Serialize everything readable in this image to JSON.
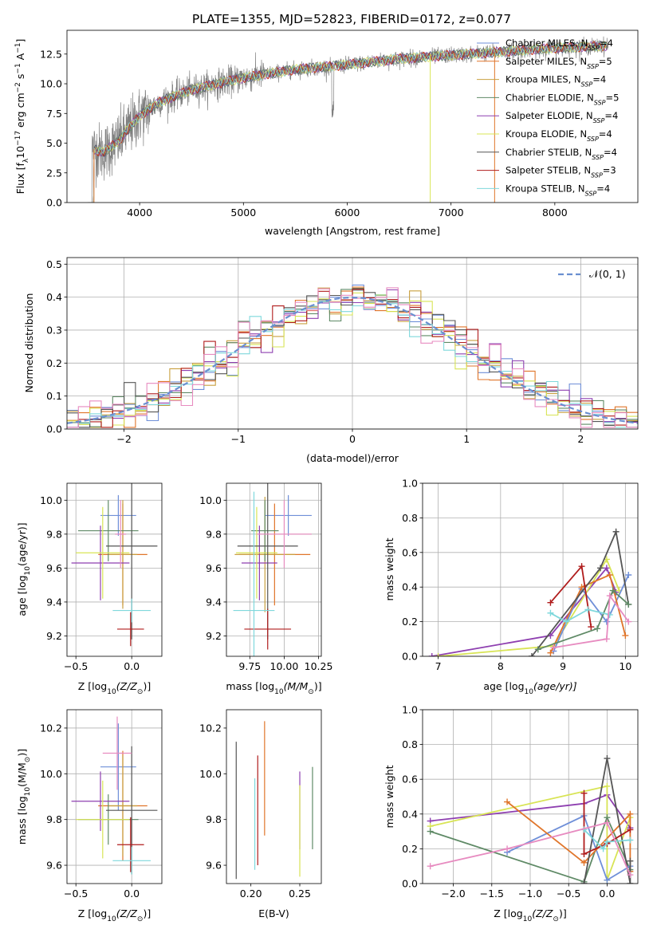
{
  "colors": {
    "Chabrier MILES": "#6f8fd8",
    "Salpeter MILES": "#e0752a",
    "Kroupa MILES": "#c9a040",
    "Chabrier ELODIE": "#5f8a66",
    "Salpeter ELODIE": "#8e3fb0",
    "Kroupa ELODIE": "#d8e455",
    "Chabrier STELIB": "#555555",
    "Salpeter STELIB": "#b01c1c",
    "Kroupa STELIB": "#7fd8dc",
    "pink": "#e78bc0",
    "data": "#808080",
    "normal": "#6a8fd0"
  },
  "chart_data": [
    {
      "id": "spectrum",
      "type": "line",
      "title": "PLATE=1355, MJD=52823, FIBERID=0172, z=0.077",
      "xlabel": "wavelength [Angstrom, rest frame]",
      "ylabel_parts": [
        "Flux [f",
        "λ",
        "10",
        "−17",
        " erg cm",
        "−2",
        " s",
        "−1",
        " A",
        "−1",
        "]"
      ],
      "xlim": [
        3300,
        8800
      ],
      "ylim": [
        0,
        14.5
      ],
      "xticks": [
        4000,
        5000,
        6000,
        7000,
        8000
      ],
      "yticks": [
        "0.0",
        "2.5",
        "5.0",
        "7.5",
        "10.0",
        "12.5"
      ],
      "grid": false,
      "legend_placement": "right",
      "legend": [
        {
          "name": "Chabrier MILES",
          "sub": "SSP",
          "n": "4"
        },
        {
          "name": "Salpeter MILES",
          "sub": "SSP",
          "n": "5"
        },
        {
          "name": "Kroupa MILES",
          "sub": "SSP",
          "n": "4"
        },
        {
          "name": "Chabrier ELODIE",
          "sub": "SSP",
          "n": "5"
        },
        {
          "name": "Salpeter ELODIE",
          "sub": "SSP",
          "n": "4"
        },
        {
          "name": "Kroupa ELODIE",
          "sub": "SSP",
          "n": "4"
        },
        {
          "name": "Chabrier STELIB",
          "sub": "SSP",
          "n": "4"
        },
        {
          "name": "Salpeter STELIB",
          "sub": "SSP",
          "n": "3"
        },
        {
          "name": "Kroupa STELIB",
          "sub": "SSP",
          "n": "4"
        }
      ],
      "legend_prefix": "N",
      "continuum_knots": [
        [
          3520,
          4.6
        ],
        [
          3650,
          4.2
        ],
        [
          3800,
          5.2
        ],
        [
          3900,
          6.3
        ],
        [
          4000,
          7.3
        ],
        [
          4200,
          8.5
        ],
        [
          4500,
          9.5
        ],
        [
          5000,
          10.5
        ],
        [
          5500,
          11.2
        ],
        [
          6000,
          11.6
        ],
        [
          6500,
          12.1
        ],
        [
          7000,
          12.4
        ],
        [
          7500,
          12.7
        ],
        [
          8000,
          13.0
        ],
        [
          8500,
          13.2
        ]
      ],
      "model_range": [
        3520,
        8500
      ],
      "data_range": [
        3500,
        8520
      ]
    },
    {
      "id": "residuals",
      "type": "histogram",
      "xlabel": "(data-model)/error",
      "ylabel": "Normed distribution",
      "xlim": [
        -2.5,
        2.5
      ],
      "ylim": [
        0,
        0.52
      ],
      "xticks": [
        "−2",
        "−1",
        "0",
        "1",
        "2"
      ],
      "xtick_values": [
        -2,
        -1,
        0,
        1,
        2
      ],
      "yticks": [
        "0.0",
        "0.1",
        "0.2",
        "0.3",
        "0.4",
        "0.5"
      ],
      "grid": true,
      "legend": [
        "𝒩(0, 1)"
      ],
      "legend_placement": "upper right",
      "bin_width": 0.1
    },
    {
      "id": "age_vs_Z",
      "type": "errorbar",
      "xlabel_parts": [
        "Z [log",
        "10",
        "(Z/Z",
        "⊙",
        ")]"
      ],
      "ylabel_parts": [
        "age  [log",
        "10",
        "(age/yr)]"
      ],
      "xlim": [
        -0.58,
        0.27
      ],
      "ylim": [
        9.08,
        10.1
      ],
      "xticks": [
        "−0.5",
        "0.0"
      ],
      "xtick_values": [
        -0.5,
        0.0
      ],
      "yticks": [
        "9.2",
        "9.4",
        "9.6",
        "9.8",
        "10.0"
      ],
      "ytick_values": [
        9.2,
        9.4,
        9.6,
        9.8,
        10.0
      ],
      "grid": true,
      "points": [
        {
          "model": "Chabrier MILES",
          "x": -0.12,
          "y": 9.91,
          "xerr": 0.16,
          "yerr": 0.12
        },
        {
          "model": "Salpeter MILES",
          "x": -0.08,
          "y": 9.68,
          "xerr": 0.22,
          "yerr": 0.3
        },
        {
          "model": "Kroupa MILES",
          "x": -0.08,
          "y": 9.68,
          "xerr": 0.13,
          "yerr": 0.32
        },
        {
          "model": "Chabrier ELODIE",
          "x": -0.21,
          "y": 9.82,
          "xerr": 0.27,
          "yerr": 0.18
        },
        {
          "model": "Salpeter ELODIE",
          "x": -0.28,
          "y": 9.63,
          "xerr": 0.26,
          "yerr": 0.22
        },
        {
          "model": "Kroupa ELODIE",
          "x": -0.26,
          "y": 9.69,
          "xerr": 0.24,
          "yerr": 0.27
        },
        {
          "model": "Chabrier STELIB",
          "x": 0.0,
          "y": 9.73,
          "xerr": 0.23,
          "yerr": 0.55
        },
        {
          "model": "Salpeter STELIB",
          "x": -0.01,
          "y": 9.24,
          "xerr": 0.12,
          "yerr": 0.1
        },
        {
          "model": "Kroupa STELIB",
          "x": 0.0,
          "y": 9.35,
          "xerr": 0.17,
          "yerr": 0.07
        },
        {
          "model": "pink",
          "x": -0.1,
          "y": 9.8,
          "xerr": 0.05,
          "yerr": 0.2
        }
      ]
    },
    {
      "id": "age_vs_mass",
      "type": "errorbar",
      "xlabel_parts": [
        "mass [log",
        "10",
        "(M/M",
        "⊙",
        ")]"
      ],
      "xlim": [
        9.58,
        10.27
      ],
      "ylim": [
        9.08,
        10.1
      ],
      "xticks": [
        "9.75",
        "10.00",
        "10.25"
      ],
      "xtick_values": [
        9.75,
        10.0,
        10.25
      ],
      "yticks": [
        "9.2",
        "9.4",
        "9.6",
        "9.8",
        "10.0"
      ],
      "ytick_values": [
        9.2,
        9.4,
        9.6,
        9.8,
        10.0
      ],
      "grid": true,
      "points": [
        {
          "model": "Chabrier MILES",
          "x": 10.03,
          "y": 9.91,
          "xerr": 0.17,
          "yerr": 0.12
        },
        {
          "model": "Salpeter MILES",
          "x": 9.93,
          "y": 9.68,
          "xerr": 0.26,
          "yerr": 0.3
        },
        {
          "model": "Kroupa MILES",
          "x": 9.86,
          "y": 9.68,
          "xerr": 0.22,
          "yerr": 0.34
        },
        {
          "model": "Chabrier ELODIE",
          "x": 9.86,
          "y": 9.82,
          "xerr": 0.1,
          "yerr": 0.18
        },
        {
          "model": "Salpeter ELODIE",
          "x": 9.82,
          "y": 9.63,
          "xerr": 0.13,
          "yerr": 0.22
        },
        {
          "model": "Kroupa ELODIE",
          "x": 9.8,
          "y": 9.69,
          "xerr": 0.15,
          "yerr": 0.27
        },
        {
          "model": "Chabrier STELIB",
          "x": 9.88,
          "y": 9.73,
          "xerr": 0.22,
          "yerr": 0.55
        },
        {
          "model": "Salpeter STELIB",
          "x": 9.88,
          "y": 9.24,
          "xerr": 0.17,
          "yerr": 0.12
        },
        {
          "model": "Kroupa STELIB",
          "x": 9.78,
          "y": 9.35,
          "xerr": 0.15,
          "yerr": 0.7
        },
        {
          "model": "pink",
          "x": 10.0,
          "y": 9.8,
          "xerr": 0.2,
          "yerr": 0.2
        }
      ]
    },
    {
      "id": "weight_vs_age",
      "type": "line",
      "xlabel_parts": [
        "age  [log",
        "10",
        "(age/yr)]"
      ],
      "ylabel": "mass weight",
      "xlim": [
        6.75,
        10.2
      ],
      "ylim": [
        0,
        1
      ],
      "xticks": [
        "7",
        "8",
        "9",
        "10"
      ],
      "xtick_values": [
        7,
        8,
        9,
        10
      ],
      "yticks": [
        "0.0",
        "0.2",
        "0.4",
        "0.6",
        "0.8",
        "1.0"
      ],
      "ytick_values": [
        0,
        0.2,
        0.4,
        0.6,
        0.8,
        1.0
      ],
      "grid": true,
      "series": [
        {
          "model": "Salpeter ELODIE",
          "x": [
            6.9,
            8.8,
            9.7,
            9.85
          ],
          "y": [
            0.0,
            0.12,
            0.51,
            0.37
          ]
        },
        {
          "model": "Kroupa ELODIE",
          "x": [
            7.0,
            8.85,
            9.7,
            9.9
          ],
          "y": [
            0.0,
            0.06,
            0.56,
            0.38
          ]
        },
        {
          "model": "Chabrier MILES",
          "x": [
            8.85,
            9.3,
            9.7,
            10.05
          ],
          "y": [
            0.03,
            0.39,
            0.2,
            0.47
          ]
        },
        {
          "model": "Salpeter MILES",
          "x": [
            8.8,
            9.3,
            9.75,
            10.0
          ],
          "y": [
            0.02,
            0.4,
            0.47,
            0.12
          ]
        },
        {
          "model": "Chabrier STELIB",
          "x": [
            8.5,
            9.6,
            9.85,
            10.05
          ],
          "y": [
            0.0,
            0.51,
            0.72,
            0.3
          ]
        },
        {
          "model": "Chabrier ELODIE",
          "x": [
            8.6,
            9.55,
            9.8,
            10.05
          ],
          "y": [
            0.04,
            0.16,
            0.38,
            0.3
          ]
        },
        {
          "model": "Salpeter STELIB",
          "x": [
            8.8,
            9.3,
            9.45
          ],
          "y": [
            0.31,
            0.52,
            0.17
          ]
        },
        {
          "model": "Kroupa STELIB",
          "x": [
            8.8,
            9.05,
            9.4,
            9.75
          ],
          "y": [
            0.25,
            0.2,
            0.27,
            0.24
          ]
        },
        {
          "model": "pink",
          "x": [
            8.85,
            9.7,
            9.75,
            10.05
          ],
          "y": [
            0.05,
            0.1,
            0.35,
            0.2
          ]
        }
      ]
    },
    {
      "id": "mass_vs_Z",
      "type": "errorbar",
      "xlabel_parts": [
        "Z [log",
        "10",
        "(Z/Z",
        "⊙",
        ")]"
      ],
      "ylabel_parts": [
        "mass [log",
        "10",
        "(M/M",
        "⊙",
        ")]"
      ],
      "xlim": [
        -0.58,
        0.27
      ],
      "ylim": [
        9.52,
        10.28
      ],
      "xticks": [
        "−0.5",
        "0.0"
      ],
      "xtick_values": [
        -0.5,
        0.0
      ],
      "yticks": [
        "9.6",
        "9.8",
        "10.0",
        "10.2"
      ],
      "ytick_values": [
        9.6,
        9.8,
        10.0,
        10.2
      ],
      "grid": true,
      "points": [
        {
          "model": "Chabrier MILES",
          "x": -0.12,
          "y": 10.03,
          "xerr": 0.16,
          "yerr": 0.19
        },
        {
          "model": "Salpeter MILES",
          "x": -0.08,
          "y": 9.86,
          "xerr": 0.22,
          "yerr": 0.24
        },
        {
          "model": "Kroupa MILES",
          "x": -0.08,
          "y": 9.86,
          "xerr": 0.13,
          "yerr": 0.22
        },
        {
          "model": "Chabrier ELODIE",
          "x": -0.21,
          "y": 9.8,
          "xerr": 0.27,
          "yerr": 0.11
        },
        {
          "model": "Salpeter ELODIE",
          "x": -0.28,
          "y": 9.88,
          "xerr": 0.26,
          "yerr": 0.13
        },
        {
          "model": "Kroupa ELODIE",
          "x": -0.26,
          "y": 9.8,
          "xerr": 0.24,
          "yerr": 0.17
        },
        {
          "model": "Chabrier STELIB",
          "x": 0.0,
          "y": 9.84,
          "xerr": 0.23,
          "yerr": 0.28
        },
        {
          "model": "Salpeter STELIB",
          "x": -0.01,
          "y": 9.69,
          "xerr": 0.12,
          "yerr": 0.12
        },
        {
          "model": "Kroupa STELIB",
          "x": 0.0,
          "y": 9.62,
          "xerr": 0.17,
          "yerr": 0.06
        },
        {
          "model": "pink",
          "x": -0.13,
          "y": 10.09,
          "xerr": 0.13,
          "yerr": 0.16
        }
      ]
    },
    {
      "id": "mass_vs_ebv",
      "type": "errorbar",
      "xlabel": "E(B-V)",
      "xlim": [
        0.175,
        0.272
      ],
      "ylim": [
        9.52,
        10.28
      ],
      "xticks": [
        "0.20",
        "0.25"
      ],
      "xtick_values": [
        0.2,
        0.25
      ],
      "yticks": [
        "9.6",
        "9.8",
        "10.0",
        "10.2"
      ],
      "ytick_values": [
        9.6,
        9.8,
        10.0,
        10.2
      ],
      "grid": false,
      "points": [
        {
          "model": "Chabrier STELIB",
          "x": 0.185,
          "y": 9.84,
          "xerr": 0,
          "yerr": 0.3
        },
        {
          "model": "Kroupa STELIB",
          "x": 0.204,
          "y": 9.78,
          "xerr": 0,
          "yerr": 0.2
        },
        {
          "model": "Salpeter STELIB",
          "x": 0.207,
          "y": 9.84,
          "xerr": 0,
          "yerr": 0.24
        },
        {
          "model": "Salpeter MILES",
          "x": 0.214,
          "y": 9.98,
          "xerr": 0,
          "yerr": 0.25
        },
        {
          "model": "Salpeter ELODIE",
          "x": 0.25,
          "y": 9.84,
          "xerr": 0,
          "yerr": 0.17
        },
        {
          "model": "Kroupa ELODIE",
          "x": 0.25,
          "y": 9.75,
          "xerr": 0,
          "yerr": 0.2
        },
        {
          "model": "Chabrier ELODIE",
          "x": 0.263,
          "y": 9.85,
          "xerr": 0,
          "yerr": 0.18
        }
      ]
    },
    {
      "id": "weight_vs_Z",
      "type": "line",
      "xlabel_parts": [
        "Z [log",
        "10",
        "(Z/Z",
        "⊙",
        ")]"
      ],
      "ylabel": "mass weight",
      "xlim": [
        -2.4,
        0.4
      ],
      "ylim": [
        0,
        1
      ],
      "xticks": [
        "−2.0",
        "−1.5",
        "−1.0",
        "−0.5",
        "0.0"
      ],
      "xtick_values": [
        -2.0,
        -1.5,
        -1.0,
        -0.5,
        0.0
      ],
      "yticks": [
        "0.0",
        "0.2",
        "0.4",
        "0.6",
        "0.8",
        "1.0"
      ],
      "ytick_values": [
        0,
        0.2,
        0.4,
        0.6,
        0.8,
        1.0
      ],
      "grid": true,
      "series": [
        {
          "model": "Salpeter ELODIE",
          "x": [
            -2.3,
            -0.3,
            0.0,
            0.3
          ],
          "y": [
            0.36,
            0.46,
            0.51,
            0.32
          ]
        },
        {
          "model": "Kroupa ELODIE",
          "x": [
            -2.3,
            0.0,
            0.0,
            0.3
          ],
          "y": [
            0.33,
            0.56,
            0.02,
            0.38
          ]
        },
        {
          "model": "Chabrier ELODIE",
          "x": [
            -2.3,
            -0.3,
            0.0,
            0.3
          ],
          "y": [
            0.3,
            0.01,
            0.38,
            0.08
          ]
        },
        {
          "model": "Chabrier MILES",
          "x": [
            -1.3,
            -0.3,
            0.0,
            0.3
          ],
          "y": [
            0.18,
            0.39,
            0.02,
            0.1
          ]
        },
        {
          "model": "Salpeter MILES",
          "x": [
            -1.3,
            -0.3,
            0.3,
            0.3
          ],
          "y": [
            0.47,
            0.12,
            0.4,
            0.07
          ]
        },
        {
          "model": "Chabrier STELIB",
          "x": [
            -0.3,
            0.0,
            0.3,
            0.3
          ],
          "y": [
            0.0,
            0.72,
            0.0,
            0.13
          ]
        },
        {
          "model": "Salpeter STELIB",
          "x": [
            -0.3,
            -0.3,
            0.0,
            0.3
          ],
          "y": [
            0.52,
            0.17,
            0.23,
            0.31
          ]
        },
        {
          "model": "Kroupa STELIB",
          "x": [
            -0.3,
            -0.05,
            0.0,
            0.3
          ],
          "y": [
            0.31,
            0.2,
            0.24,
            0.25
          ]
        },
        {
          "model": "pink",
          "x": [
            -2.3,
            -1.3,
            0.0,
            0.3
          ],
          "y": [
            0.1,
            0.2,
            0.35,
            0.05
          ]
        }
      ]
    }
  ]
}
